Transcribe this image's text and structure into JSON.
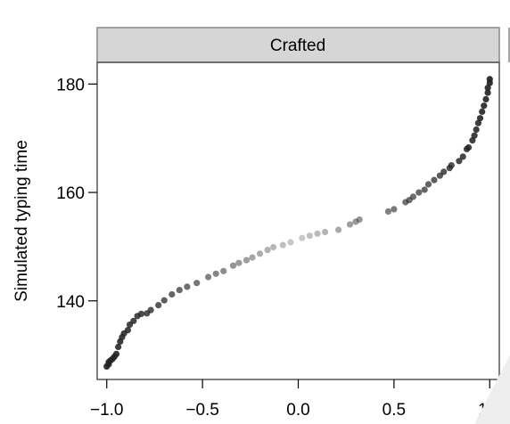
{
  "chart_data": {
    "type": "scatter",
    "panel_title": "Crafted",
    "title": "",
    "xlabel": "",
    "ylabel": "Simulated typing time",
    "xlim": [
      -1.05,
      1.05
    ],
    "ylim": [
      125.5,
      184
    ],
    "x_ticks": [
      -1.0,
      -0.5,
      0.0,
      0.5,
      1.0
    ],
    "x_tick_labels": [
      "−1.0",
      "−0.5",
      "0.0",
      "0.5",
      "1.0"
    ],
    "y_ticks": [
      140,
      160,
      180
    ],
    "y_tick_labels": [
      "140",
      "160",
      "180"
    ],
    "grid": false,
    "legend": "none",
    "colors": {
      "strip_fill": "#d6d6d6",
      "strip_border": "#888888",
      "panel_border": "#555555",
      "point_dark": "#222222",
      "point_light": "#cccccc"
    },
    "series": [
      {
        "points": [
          {
            "x": -1.0,
            "y": 127.9
          },
          {
            "x": -0.99,
            "y": 128.3
          },
          {
            "x": -0.99,
            "y": 128.7
          },
          {
            "x": -0.98,
            "y": 129.0
          },
          {
            "x": -0.97,
            "y": 129.3
          },
          {
            "x": -0.96,
            "y": 129.7
          },
          {
            "x": -0.95,
            "y": 130.2
          },
          {
            "x": -0.94,
            "y": 131.5
          },
          {
            "x": -0.93,
            "y": 132.5
          },
          {
            "x": -0.92,
            "y": 133.3
          },
          {
            "x": -0.91,
            "y": 134.0
          },
          {
            "x": -0.89,
            "y": 134.6
          },
          {
            "x": -0.88,
            "y": 135.6
          },
          {
            "x": -0.86,
            "y": 136.3
          },
          {
            "x": -0.84,
            "y": 137.2
          },
          {
            "x": -0.82,
            "y": 137.6
          },
          {
            "x": -0.79,
            "y": 137.7
          },
          {
            "x": -0.77,
            "y": 138.3
          },
          {
            "x": -0.73,
            "y": 139.2
          },
          {
            "x": -0.7,
            "y": 140.1
          },
          {
            "x": -0.66,
            "y": 141.2
          },
          {
            "x": -0.62,
            "y": 142.0
          },
          {
            "x": -0.58,
            "y": 142.6
          },
          {
            "x": -0.53,
            "y": 143.3
          },
          {
            "x": -0.47,
            "y": 144.4
          },
          {
            "x": -0.43,
            "y": 145.0
          },
          {
            "x": -0.39,
            "y": 145.5
          },
          {
            "x": -0.34,
            "y": 146.5
          },
          {
            "x": -0.31,
            "y": 147.0
          },
          {
            "x": -0.27,
            "y": 147.5
          },
          {
            "x": -0.24,
            "y": 148.0
          },
          {
            "x": -0.2,
            "y": 148.7
          },
          {
            "x": -0.16,
            "y": 149.4
          },
          {
            "x": -0.13,
            "y": 149.9
          },
          {
            "x": -0.08,
            "y": 150.3
          },
          {
            "x": -0.04,
            "y": 150.8
          },
          {
            "x": 0.02,
            "y": 151.6
          },
          {
            "x": 0.06,
            "y": 152.0
          },
          {
            "x": 0.1,
            "y": 152.4
          },
          {
            "x": 0.14,
            "y": 152.7
          },
          {
            "x": 0.21,
            "y": 153.1
          },
          {
            "x": 0.27,
            "y": 154.1
          },
          {
            "x": 0.3,
            "y": 154.6
          },
          {
            "x": 0.32,
            "y": 155.0
          },
          {
            "x": 0.47,
            "y": 156.5
          },
          {
            "x": 0.5,
            "y": 156.9
          },
          {
            "x": 0.56,
            "y": 158.2
          },
          {
            "x": 0.58,
            "y": 158.6
          },
          {
            "x": 0.6,
            "y": 159.2
          },
          {
            "x": 0.63,
            "y": 160.0
          },
          {
            "x": 0.66,
            "y": 160.5
          },
          {
            "x": 0.68,
            "y": 161.5
          },
          {
            "x": 0.71,
            "y": 162.3
          },
          {
            "x": 0.74,
            "y": 163.1
          },
          {
            "x": 0.76,
            "y": 163.8
          },
          {
            "x": 0.79,
            "y": 164.5
          },
          {
            "x": 0.8,
            "y": 165.0
          },
          {
            "x": 0.84,
            "y": 165.8
          },
          {
            "x": 0.86,
            "y": 166.6
          },
          {
            "x": 0.88,
            "y": 168.0
          },
          {
            "x": 0.89,
            "y": 168.3
          },
          {
            "x": 0.91,
            "y": 169.6
          },
          {
            "x": 0.92,
            "y": 170.5
          },
          {
            "x": 0.93,
            "y": 171.6
          },
          {
            "x": 0.94,
            "y": 172.8
          },
          {
            "x": 0.95,
            "y": 173.7
          },
          {
            "x": 0.96,
            "y": 174.9
          },
          {
            "x": 0.97,
            "y": 176.0
          },
          {
            "x": 0.98,
            "y": 177.2
          },
          {
            "x": 0.99,
            "y": 178.4
          },
          {
            "x": 0.99,
            "y": 179.3
          },
          {
            "x": 1.0,
            "y": 180.2
          },
          {
            "x": 1.0,
            "y": 180.9
          }
        ]
      }
    ]
  }
}
